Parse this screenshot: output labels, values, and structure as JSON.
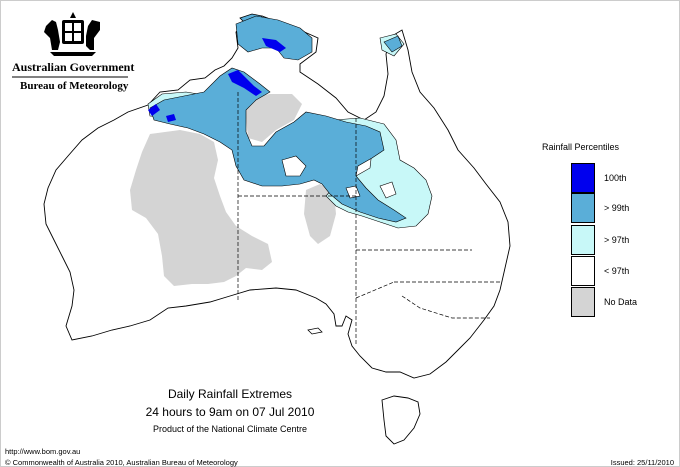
{
  "header": {
    "gov_name": "Australian Government",
    "agency_name": "Bureau of Meteorology"
  },
  "legend": {
    "title": "Rainfall Percentiles",
    "items": [
      {
        "label": "100th",
        "color": "#0000ee"
      },
      {
        "label": "> 99th",
        "color": "#5aaed8"
      },
      {
        "label": "> 97th",
        "color": "#c8f8f8"
      },
      {
        "label": "< 97th",
        "color": "#ffffff"
      },
      {
        "label": "No Data",
        "color": "#d4d4d4"
      }
    ]
  },
  "caption": {
    "title": "Daily Rainfall Extremes",
    "subtitle": "24 hours to 9am on 07 Jul 2010",
    "note": "Product of the National Climate Centre"
  },
  "footer": {
    "url": "http://www.bom.gov.au",
    "copyright": "© Commonwealth of Australia 2010, Australian Bureau of Meteorology",
    "issued": "Issued: 25/11/2010"
  }
}
